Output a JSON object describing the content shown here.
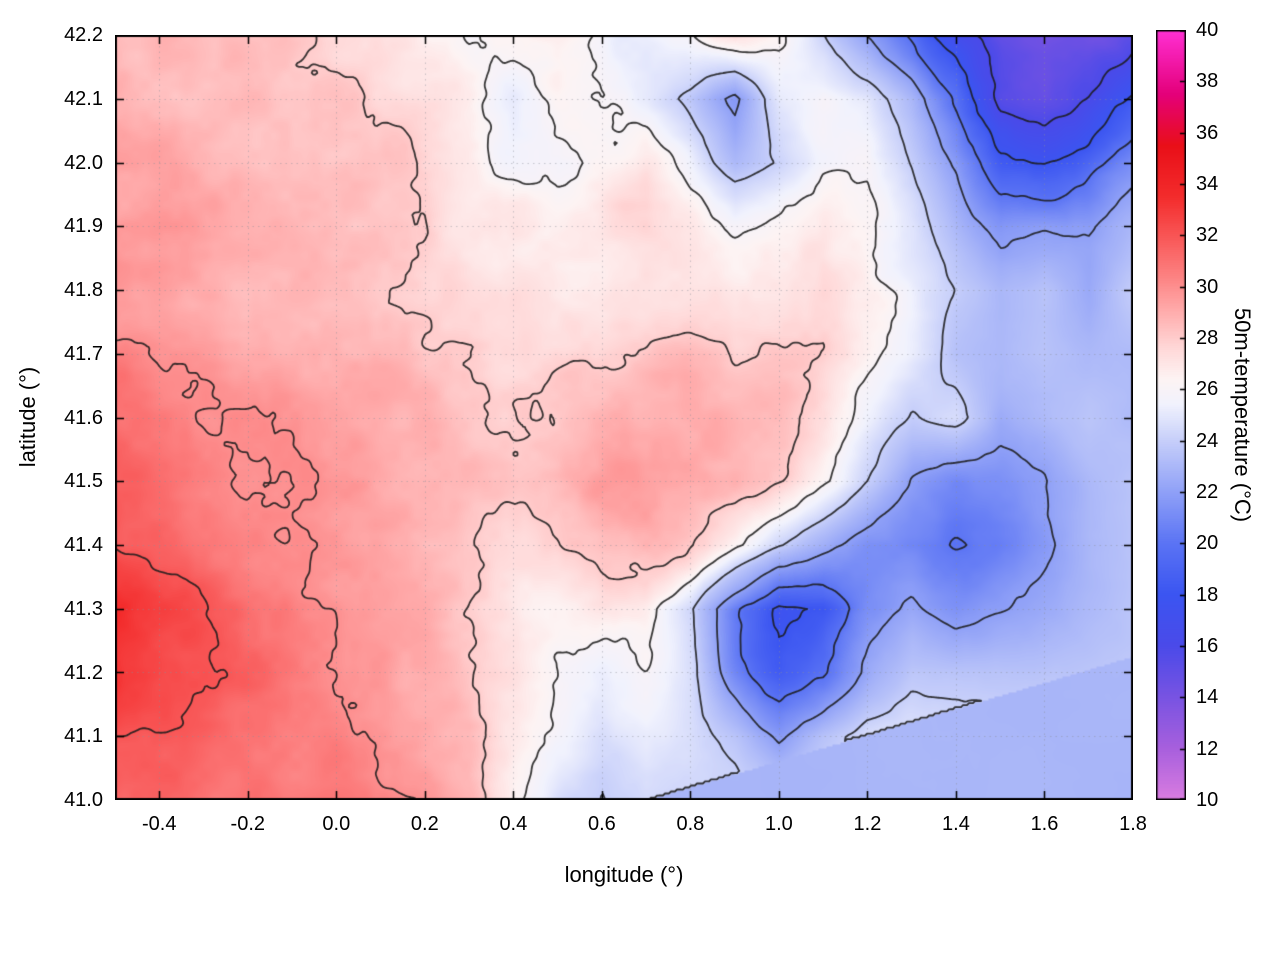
{
  "figure": {
    "background": "#ffffff"
  },
  "chart_data": {
    "type": "heatmap",
    "title": "",
    "xlabel": "longitude (°)",
    "ylabel": "latitude (°)",
    "xlim": [
      -0.5,
      1.8
    ],
    "ylim": [
      41.0,
      42.2
    ],
    "xticks": [
      -0.4,
      -0.2,
      0.0,
      0.2,
      0.4,
      0.6,
      0.8,
      1.0,
      1.2,
      1.4,
      1.6,
      1.8
    ],
    "xtick_labels": [
      "-0.4",
      "-0.2",
      "0.0",
      "0.2",
      "0.4",
      "0.6",
      "0.8",
      "1.0",
      "1.2",
      "1.4",
      "1.6",
      "1.8"
    ],
    "yticks": [
      41.0,
      41.1,
      41.2,
      41.3,
      41.4,
      41.5,
      41.6,
      41.7,
      41.8,
      41.9,
      42.0,
      42.1,
      42.2
    ],
    "ytick_labels": [
      "41.0",
      "41.1",
      "41.2",
      "41.3",
      "41.4",
      "41.5",
      "41.6",
      "41.7",
      "41.8",
      "41.9",
      "42.0",
      "42.1",
      "42.2"
    ],
    "grid": true,
    "style": {
      "contour_color": "#1c1c1c",
      "grid_color": "#8a8f98",
      "border_color": "#000000",
      "text_color": "#000000"
    },
    "colorbar": {
      "label": "50m-temperature (°C)",
      "min": 10,
      "max": 40,
      "ticks": [
        10,
        12,
        14,
        16,
        18,
        20,
        22,
        24,
        26,
        28,
        30,
        32,
        34,
        36,
        38,
        40
      ],
      "tick_labels": [
        "10",
        "12",
        "14",
        "16",
        "18",
        "20",
        "22",
        "24",
        "26",
        "28",
        "30",
        "32",
        "34",
        "36",
        "38",
        "40"
      ],
      "palette": [
        [
          10,
          "#d97ce0"
        ],
        [
          12,
          "#a75fdd"
        ],
        [
          14,
          "#7853e2"
        ],
        [
          16,
          "#4a4ae9"
        ],
        [
          18,
          "#3b55f1"
        ],
        [
          20,
          "#5b74f4"
        ],
        [
          22,
          "#90a1f7"
        ],
        [
          24,
          "#c7cffa"
        ],
        [
          25.4,
          "#f1f2fd"
        ],
        [
          26.4,
          "#fdf3f3"
        ],
        [
          27.6,
          "#ffd8d8"
        ],
        [
          29,
          "#ffadad"
        ],
        [
          30.5,
          "#fc7f7f"
        ],
        [
          32,
          "#f85555"
        ],
        [
          33.5,
          "#f32c2c"
        ],
        [
          35.5,
          "#e90f18"
        ],
        [
          37.5,
          "#e4007a"
        ],
        [
          40,
          "#ff30d4"
        ]
      ]
    },
    "contour_levels": [
      16,
      18,
      20,
      22,
      24,
      26,
      28,
      30,
      32
    ],
    "sea": {
      "sst": 22.9,
      "coast_lon0": 0.7,
      "coast_slope": 0.205
    },
    "grid_field": {
      "nx": 24,
      "ny": 13,
      "x0": -0.5,
      "x1": 1.8,
      "y0": 41.0,
      "y1": 42.2,
      "values_north_to_south": [
        [
          29,
          29,
          28.5,
          28,
          28,
          27.5,
          27.5,
          27,
          26.5,
          27,
          27.5,
          26.5,
          25.5,
          26,
          27,
          26,
          24,
          22,
          20,
          17,
          14.5,
          13.5,
          14,
          15.5
        ],
        [
          29.5,
          29,
          28.5,
          28.5,
          28,
          28,
          27.5,
          27,
          27,
          25.5,
          26.5,
          26,
          25,
          23.5,
          21.5,
          25,
          26,
          25,
          23,
          20,
          16,
          15,
          16,
          18
        ],
        [
          30,
          29.5,
          29,
          28.5,
          28,
          28,
          27.5,
          27.5,
          27,
          26,
          25.5,
          26,
          26.5,
          25,
          23,
          24,
          25.5,
          26,
          24,
          22,
          19,
          18.5,
          19.5,
          21
        ],
        [
          30,
          30,
          29.5,
          29,
          28.5,
          28,
          28,
          28,
          27.5,
          27.5,
          27,
          27,
          27.5,
          27,
          26,
          26.5,
          27,
          26.5,
          25,
          23,
          21.5,
          22,
          22,
          23
        ],
        [
          30,
          30,
          29.5,
          29,
          29,
          28.5,
          28,
          28,
          28,
          28,
          27.5,
          27.5,
          28,
          28,
          27.5,
          27.5,
          28,
          27,
          25.5,
          24,
          23,
          23.5,
          22.5,
          24
        ],
        [
          30.5,
          30,
          30,
          29.5,
          29,
          29,
          28.5,
          28,
          28,
          28,
          28,
          28,
          28.5,
          28.5,
          28,
          28,
          28,
          27,
          25.5,
          23.5,
          23,
          23.5,
          23,
          23
        ],
        [
          31,
          30.5,
          30,
          30,
          29.5,
          29,
          28.5,
          28.5,
          28,
          28,
          28.5,
          28.5,
          28.5,
          28.5,
          28.5,
          28,
          27,
          25.5,
          24,
          24.5,
          22.5,
          23,
          23.5,
          23
        ],
        [
          31.5,
          31,
          30.5,
          30,
          30,
          29.5,
          29,
          28.5,
          28.5,
          28.5,
          28.5,
          29,
          29,
          29,
          28.5,
          27.5,
          26,
          24,
          22,
          21,
          21.5,
          22,
          23,
          23.5
        ],
        [
          32,
          31.5,
          31,
          30.5,
          30,
          29.5,
          29,
          28.5,
          28,
          27.5,
          28,
          28.5,
          28.5,
          27.5,
          26,
          24,
          22.5,
          21,
          20.5,
          20,
          21,
          22,
          23,
          23.5
        ],
        [
          33,
          32.5,
          32,
          31,
          30.5,
          30,
          29.5,
          29,
          28,
          27,
          26.5,
          26.5,
          26,
          24,
          20,
          17,
          17.5,
          20.5,
          22,
          21.5,
          22,
          22.5,
          23,
          23.5
        ],
        [
          32.5,
          32,
          31.5,
          31,
          30.5,
          30,
          29.5,
          29,
          28.5,
          27.5,
          26,
          25,
          25.5,
          24.5,
          21,
          18.5,
          19.5,
          22,
          23.5,
          23.5,
          23.5,
          23.5,
          23.5,
          23.5
        ],
        [
          31.5,
          31,
          31,
          30.5,
          30,
          30,
          29.5,
          29,
          28.5,
          27,
          25.5,
          24.5,
          25,
          24.5,
          23.5,
          22,
          23.5,
          24.5,
          24.5,
          24.5,
          24.5,
          24.5,
          24.5,
          24.5
        ],
        [
          31,
          31,
          30.5,
          30.5,
          30,
          30,
          29.5,
          29,
          28,
          26,
          24.5,
          24,
          24.5,
          24.5,
          24.5,
          24.5,
          24.5,
          24.5,
          24.5,
          24.5,
          24.5,
          24.5,
          24.5,
          24.5
        ]
      ]
    }
  }
}
